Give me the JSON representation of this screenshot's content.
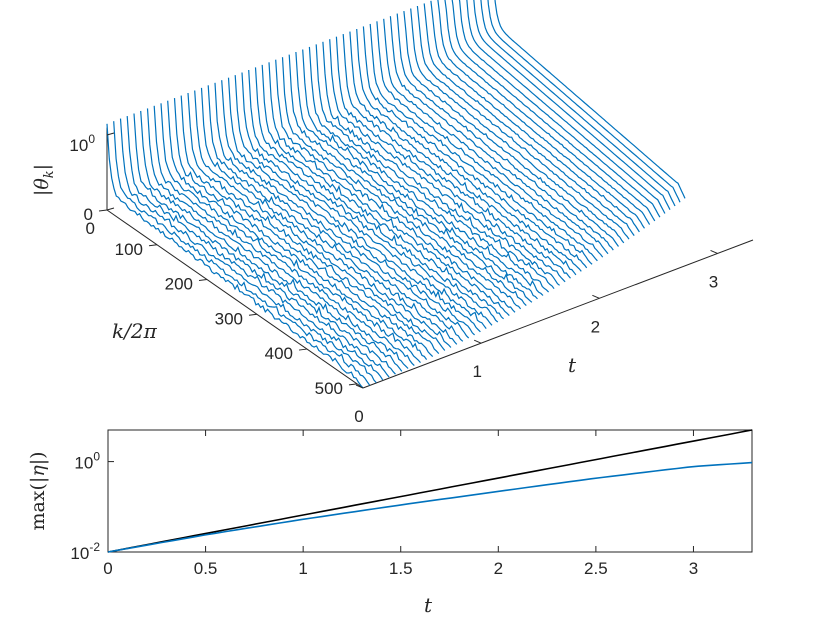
{
  "chart_data": [
    {
      "type": "line",
      "view": "3d-waterfall",
      "xlabel": "k/2π",
      "ylabel": "t",
      "zlabel": "|θ_k|",
      "x_ticks": [
        "0",
        "100",
        "200",
        "300",
        "400",
        "500"
      ],
      "y_ticks": [
        "0",
        "1",
        "2",
        "3"
      ],
      "z_ticks": [
        "0",
        "10^0"
      ],
      "xlim": [
        0,
        512
      ],
      "ylim": [
        0,
        3.3
      ],
      "series_color": "#0072BD",
      "series_count": 58,
      "series_t_step": 0.0571
    },
    {
      "type": "line",
      "xlabel": "t",
      "ylabel": "max(|η|)",
      "xlim": [
        0,
        3.3
      ],
      "ylim": [
        0.01,
        5
      ],
      "yscale": "log",
      "x_ticks": [
        "0",
        "0.5",
        "1",
        "1.5",
        "2",
        "2.5",
        "3"
      ],
      "y_ticks": [
        "10^-2",
        "10^0"
      ],
      "series": [
        {
          "color": "#0072BD",
          "x": [
            0,
            0.5,
            1.0,
            1.5,
            2.0,
            2.5,
            3.0,
            3.3
          ],
          "y": [
            0.01,
            0.024,
            0.053,
            0.11,
            0.22,
            0.43,
            0.78,
            0.95
          ]
        },
        {
          "color": "#000000",
          "x": [
            0,
            3.3
          ],
          "y": [
            0.01,
            5.0
          ]
        }
      ]
    }
  ]
}
